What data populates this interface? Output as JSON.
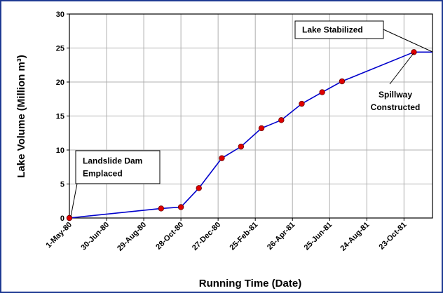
{
  "chart_data": {
    "type": "line",
    "x_label": "Running Time (Date)",
    "y_label": "Lake Volume (Million m³)",
    "x": [
      "1980-05-01",
      "1980-09-26",
      "1980-10-28",
      "1980-11-26",
      "1981-01-02",
      "1981-02-02",
      "1981-03-07",
      "1981-04-08",
      "1981-05-11",
      "1981-06-13",
      "1981-07-15",
      "1981-11-08"
    ],
    "series": [
      {
        "name": "Lake Volume",
        "color": "#0000cc",
        "marker_color": "#e00000",
        "values": [
          0,
          1.4,
          1.6,
          4.4,
          8.8,
          10.5,
          13.2,
          14.4,
          16.8,
          18.5,
          20.1,
          24.4
        ]
      }
    ],
    "xlim": [
      "1980-05-01",
      "1981-12-08"
    ],
    "xticks": [
      {
        "value": "1980-05-01",
        "label": "1-May-80"
      },
      {
        "value": "1980-06-30",
        "label": "30-Jun-80"
      },
      {
        "value": "1980-08-29",
        "label": "29-Aug-80"
      },
      {
        "value": "1980-10-28",
        "label": "28-Oct-80"
      },
      {
        "value": "1980-12-27",
        "label": "27-Dec-80"
      },
      {
        "value": "1981-02-25",
        "label": "25-Feb-81"
      },
      {
        "value": "1981-04-26",
        "label": "26-Apr-81"
      },
      {
        "value": "1981-06-25",
        "label": "25-Jun-81"
      },
      {
        "value": "1981-08-24",
        "label": "24-Aug-81"
      },
      {
        "value": "1981-10-23",
        "label": "23-Oct-81"
      }
    ],
    "ylim": [
      0,
      30
    ],
    "yticks": [
      0,
      5,
      10,
      15,
      20,
      25,
      30
    ],
    "grid": true,
    "annotations": [
      {
        "lines": [
          "Landslide Dam",
          "Emplaced"
        ],
        "boxed": true
      },
      {
        "lines": [
          "Lake Stabilized"
        ],
        "boxed": true
      },
      {
        "lines": [
          "Spillway",
          "Constructed"
        ],
        "boxed": false
      }
    ]
  }
}
